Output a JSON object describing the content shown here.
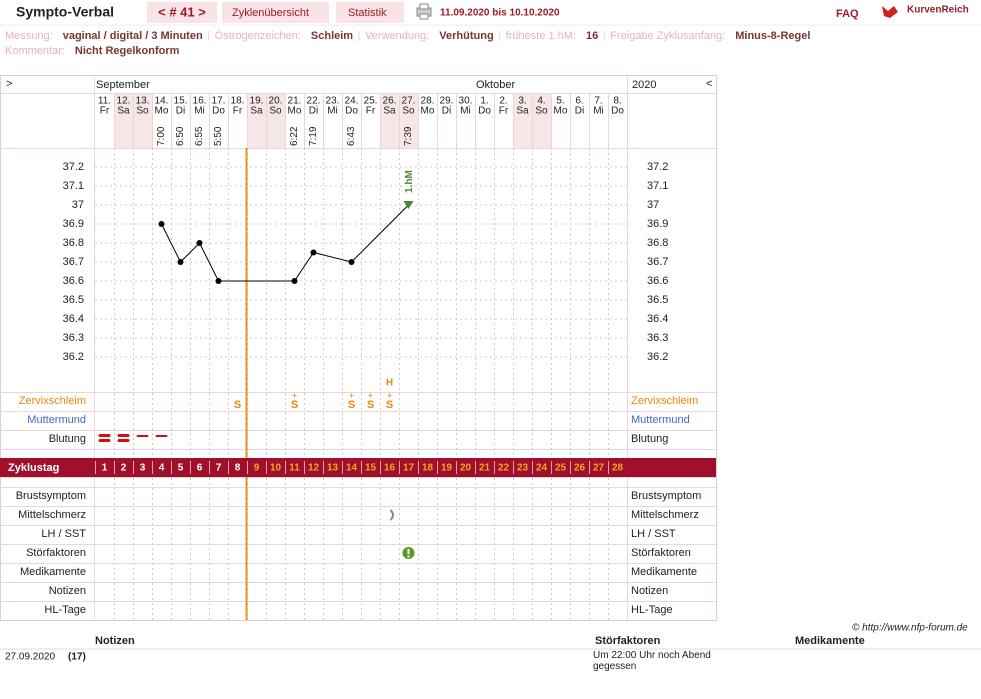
{
  "header": {
    "title": "Sympto-Verbal",
    "cycle_nav": "< # 41 >",
    "tabs": [
      "Zyklenübersicht",
      "Statistik"
    ],
    "date_range": "11.09.2020 bis 10.10.2020",
    "faq": "FAQ",
    "logo": "KurvenReich"
  },
  "info": {
    "rows": [
      [
        {
          "label": "Messung:",
          "value": "vaginal / digital / 3 Minuten"
        },
        {
          "label": "Östrogenzeichen:",
          "value": "Schleim"
        },
        {
          "label": "Verwendung:",
          "value": "Verhütung"
        },
        {
          "label": "früheste 1.hM:",
          "value": "16"
        },
        {
          "label": "Freigabe Zyklusanfang:",
          "value": "Minus-8-Regel"
        }
      ],
      [
        {
          "label": "Kommentar:",
          "value": "Nicht Regelkonform"
        }
      ]
    ]
  },
  "calendar": {
    "nav_prev": ">",
    "nav_next": "<",
    "year": "2020",
    "months": [
      "September",
      "Oktober"
    ],
    "dates": [
      "11.",
      "12.",
      "13.",
      "14.",
      "15.",
      "16.",
      "17.",
      "18.",
      "19.",
      "20.",
      "21.",
      "22.",
      "23.",
      "24.",
      "25.",
      "26.",
      "27.",
      "28.",
      "29.",
      "30.",
      "1.",
      "2.",
      "3.",
      "4.",
      "5.",
      "6.",
      "7.",
      "8."
    ],
    "weekdays": [
      "Fr",
      "Sa",
      "So",
      "Mo",
      "Di",
      "Mi",
      "Do",
      "Fr",
      "Sa",
      "So",
      "Mo",
      "Di",
      "Mi",
      "Do",
      "Fr",
      "Sa",
      "So",
      "Mo",
      "Di",
      "Mi",
      "Do",
      "Fr",
      "Sa",
      "So",
      "Mo",
      "Di",
      "Mi",
      "Do"
    ],
    "times": [
      null,
      null,
      null,
      "7:00",
      "6:50",
      "6:55",
      "5:50",
      null,
      null,
      null,
      "6:22",
      "7:19",
      null,
      "6:43",
      null,
      null,
      "7:39",
      null,
      null,
      null,
      null,
      null,
      null,
      null,
      null,
      null,
      null,
      null
    ]
  },
  "chart_data": {
    "type": "line",
    "x": [
      4,
      5,
      6,
      7,
      11,
      12,
      14,
      17
    ],
    "values": [
      36.9,
      36.7,
      36.8,
      36.6,
      36.6,
      36.75,
      36.7,
      37.0
    ],
    "color": "#000000",
    "xlim": [
      0.5,
      28.5
    ],
    "ylim": [
      36.0,
      37.3
    ],
    "yticks": [
      37.2,
      37.1,
      37,
      36.9,
      36.8,
      36.7,
      36.6,
      36.5,
      36.4,
      36.3,
      36.2
    ],
    "grid": true,
    "annotation": "1.hM"
  },
  "row_labels": {
    "top": [
      "Zervixschleim",
      "Muttermund",
      "Blutung"
    ],
    "cycle_day": "Zyklustag",
    "bottom": [
      "Brustsymptom",
      "Mittelschmerz",
      "LH / SST",
      "Störfaktoren",
      "Medikamente",
      "Notizen",
      "HL-Tage"
    ]
  },
  "cycle_days": [
    1,
    2,
    3,
    4,
    5,
    6,
    7,
    8,
    9,
    10,
    11,
    12,
    13,
    14,
    15,
    16,
    17,
    18,
    19,
    20,
    21,
    22,
    23,
    24,
    25,
    26,
    27,
    28
  ],
  "cervix": [
    {
      "day": 8,
      "sign": "S"
    },
    {
      "day": 11,
      "sign": "S",
      "plus": "+"
    },
    {
      "day": 14,
      "sign": "S",
      "plus": "+"
    },
    {
      "day": 15,
      "sign": "S",
      "plus": "+"
    },
    {
      "day": 16,
      "sign": "S",
      "plus": "+",
      "peak": "H"
    }
  ],
  "footer": {
    "copyright": "© http://www.nfp-forum.de",
    "columns": [
      "Notizen",
      "Störfaktoren",
      "Medikamente"
    ],
    "entries": [
      {
        "date": "27.09.2020",
        "day": "(17)",
        "note": "Um 22:00 Uhr noch Abend gegessen"
      }
    ]
  }
}
